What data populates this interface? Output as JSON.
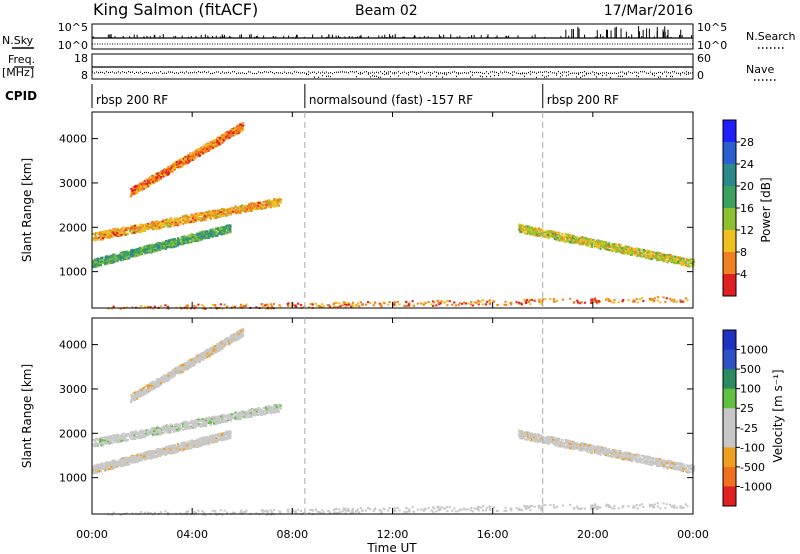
{
  "header": {
    "station": "King Salmon (fitACF)",
    "beam": "Beam 02",
    "date": "17/Mar/2016"
  },
  "aux": {
    "nsky_label": "N.Sky",
    "nsky_ticks": [
      "10^5",
      "10^0"
    ],
    "nsearch_label": "N.Search",
    "nsearch_ticks": [
      "10^5",
      "10^0"
    ],
    "freq_label": "Freq.",
    "freq_unit": "[MHz]",
    "freq_ticks": [
      "18",
      "8"
    ],
    "nave_label": "Nave",
    "nave_ticks": [
      "60",
      "0"
    ],
    "cpid_label": "CPID",
    "cpid_segments": [
      {
        "label": "rbsp 200 RF",
        "start": "00:00",
        "end": "08:30"
      },
      {
        "label": "normalsound (fast) -157 RF",
        "start": "08:30",
        "end": "18:00"
      },
      {
        "label": "rbsp 200 RF",
        "start": "18:00",
        "end": "24:00"
      }
    ]
  },
  "power_panel": {
    "ylabel": "Slant Range [km]",
    "colorbar_label": "Power [dB]",
    "colorbar_ticks": [
      "28",
      "24",
      "20",
      "16",
      "12",
      "8",
      "4"
    ],
    "colors": [
      "#2020ff",
      "#2a5fd0",
      "#2a8a8a",
      "#3ca060",
      "#8cc030",
      "#f0c020",
      "#f08020",
      "#e02020"
    ]
  },
  "velocity_panel": {
    "ylabel": "Slant Range [km]",
    "colorbar_label": "Velocity [m s⁻¹]",
    "colorbar_ticks": [
      "1000",
      "500",
      "100",
      "25",
      "-25",
      "-100",
      "-500",
      "-1000"
    ],
    "colors": [
      "#2030c0",
      "#3050c8",
      "#2a8a60",
      "#60c040",
      "#c8c8c8",
      "#c8c8c8",
      "#f0a020",
      "#f07020",
      "#e02020"
    ]
  },
  "xaxis": {
    "label": "Time UT",
    "ticks": [
      "00:00",
      "04:00",
      "08:00",
      "12:00",
      "16:00",
      "20:00",
      "00:00"
    ]
  },
  "chart_data": {
    "type": "heatmap",
    "x_range_hours": [
      0,
      24
    ],
    "y_range_km": [
      180,
      4600
    ],
    "y_ticks_km": [
      1000,
      2000,
      3000,
      4000
    ],
    "markers_ut": [
      "08:30",
      "18:00"
    ],
    "echo_bands": [
      {
        "name": "ionospheric",
        "hours": [
          0,
          5.5
        ],
        "range_km": [
          1200,
          2000
        ],
        "power_db": 18,
        "velocity": -25
      },
      {
        "name": "ionospheric",
        "hours": [
          0,
          7.5
        ],
        "range_km": [
          1800,
          2600
        ],
        "power_db": 8,
        "velocity": 25
      },
      {
        "name": "ionospheric",
        "hours": [
          1.5,
          6
        ],
        "range_km": [
          2800,
          4300
        ],
        "power_db": 6,
        "velocity": -25
      },
      {
        "name": "ionospheric",
        "hours": [
          17,
          24
        ],
        "range_km": [
          2000,
          1200
        ],
        "power_db": 12,
        "velocity": -25
      },
      {
        "name": "ground scatter",
        "hours": [
          0,
          24
        ],
        "range_km": [
          180,
          400
        ],
        "power_db": 6,
        "velocity": 0
      }
    ]
  }
}
